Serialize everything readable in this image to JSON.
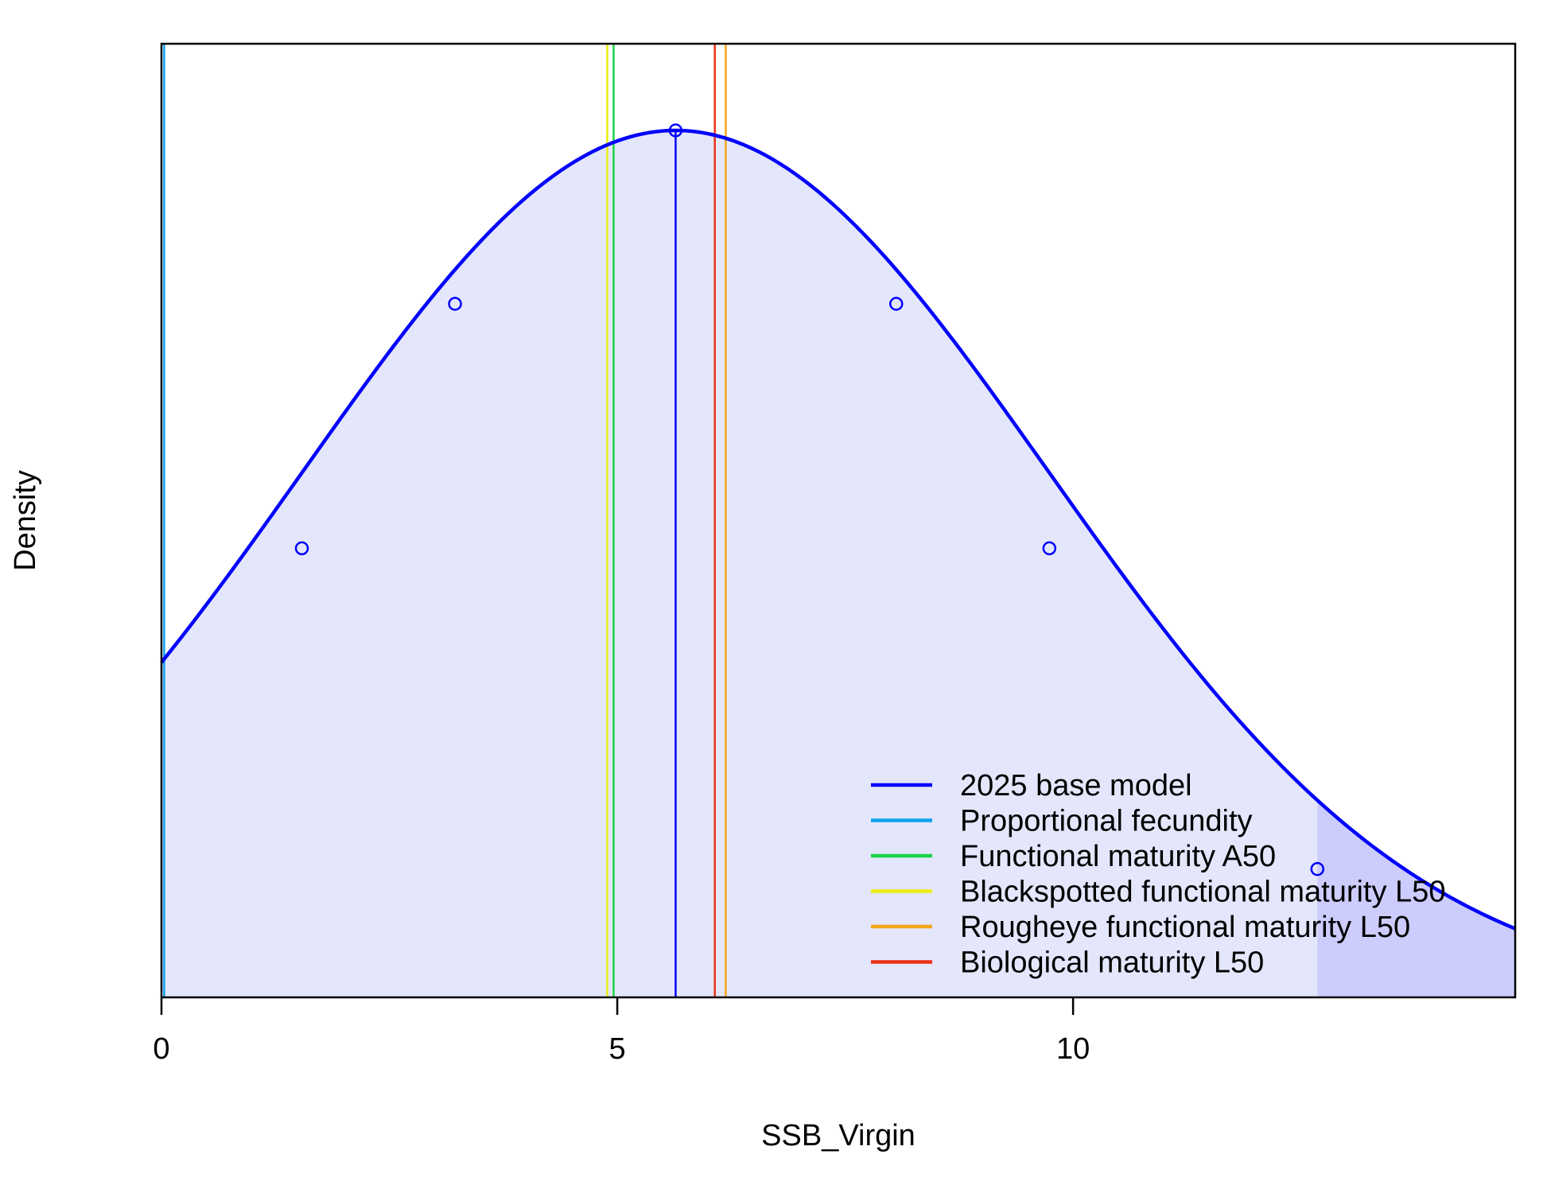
{
  "chart_data": {
    "type": "line",
    "title": "",
    "xlabel": "SSB_Virgin",
    "ylabel": "Density",
    "xlim": [
      0,
      14.85
    ],
    "ylim": [
      0,
      1.1
    ],
    "x_ticks": [
      {
        "value": 0,
        "label": "0"
      },
      {
        "value": 5,
        "label": "5"
      },
      {
        "value": 10,
        "label": "10"
      }
    ],
    "y_ticks_shown": false,
    "grid": false,
    "legend_position": "bottom-right",
    "density": {
      "name": "2025 base model",
      "mean": 5.64,
      "sd": 4.09,
      "peak": 1.0,
      "color": "#0000ff",
      "fill_color": "#e4e6fb",
      "tail_fill_color": "#ccccfd",
      "upper_tail_start": 12.68
    },
    "quantile_points": {
      "x": [
        1.54,
        3.22,
        5.64,
        8.06,
        9.74,
        12.68
      ],
      "y": [
        0.518,
        0.8,
        1.0,
        0.8,
        0.518,
        0.148
      ]
    },
    "median_line": {
      "x": 5.64,
      "color": "#0000ff"
    },
    "reference_lines": [
      {
        "name": "Proportional fecundity",
        "x": 0.03,
        "color": "#0ca0ee"
      },
      {
        "name": "Functional maturity A50",
        "x": 4.96,
        "color": "#1ad34a"
      },
      {
        "name": "Blackspotted functional maturity L50",
        "x": 4.89,
        "color": "#e9ee11"
      },
      {
        "name": "Rougheye functional maturity L50",
        "x": 6.19,
        "color": "#f3a51b"
      },
      {
        "name": "Biological maturity L50",
        "x": 6.07,
        "color": "#ee3014"
      }
    ],
    "legend": [
      {
        "label": "2025 base model",
        "color": "#0000ff"
      },
      {
        "label": "Proportional fecundity",
        "color": "#0ca0ee"
      },
      {
        "label": "Functional maturity A50",
        "color": "#1ad34a"
      },
      {
        "label": "Blackspotted functional maturity L50",
        "color": "#e9ee11"
      },
      {
        "label": "Rougheye functional maturity L50",
        "color": "#f3a51b"
      },
      {
        "label": "Biological maturity L50",
        "color": "#ee3014"
      }
    ]
  }
}
